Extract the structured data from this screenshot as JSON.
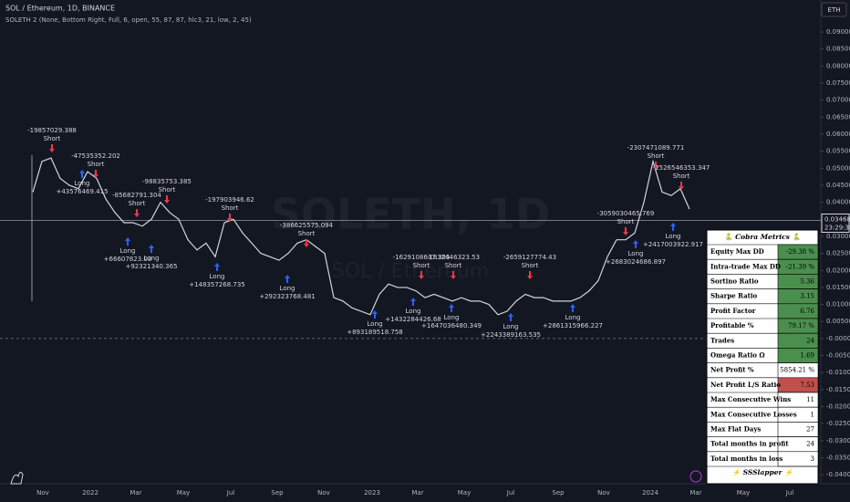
{
  "header": {
    "symbol": "SOL / Ethereum, 1D, BINANCE",
    "indicator": "SOLETH 2 (None, Bottom Right, Full, 6, open, 55, 87, 87, hlc3, 21, low, 2, 45)",
    "button": "ETH"
  },
  "watermark": {
    "main": "SOLETH, 1D",
    "sub": "SOL / Ethereum"
  },
  "price_axis": {
    "ylim": [
      -0.0405,
      0.0994
    ],
    "ticks": [
      {
        "value": 0.09,
        "label": "0.09000"
      },
      {
        "value": 0.085,
        "label": "0.08500"
      },
      {
        "value": 0.08,
        "label": "0.08000"
      },
      {
        "value": 0.075,
        "label": "0.07500"
      },
      {
        "value": 0.07,
        "label": "0.07000"
      },
      {
        "value": 0.065,
        "label": "0.06500"
      },
      {
        "value": 0.06,
        "label": "0.06000"
      },
      {
        "value": 0.055,
        "label": "0.05500"
      },
      {
        "value": 0.05,
        "label": "0.05000"
      },
      {
        "value": 0.045,
        "label": "0.04500"
      },
      {
        "value": 0.04,
        "label": "0.04000"
      },
      {
        "value": 0.035,
        "label": "0.03500"
      },
      {
        "value": 0.03,
        "label": "0.03000"
      },
      {
        "value": 0.025,
        "label": "0.02500"
      },
      {
        "value": 0.02,
        "label": "0.02000"
      },
      {
        "value": 0.015,
        "label": "0.01500"
      },
      {
        "value": 0.01,
        "label": "0.01000"
      },
      {
        "value": 0.005,
        "label": "0.00500"
      },
      {
        "value": 0,
        "label": "-0.00000"
      },
      {
        "value": -0.005,
        "label": "-0.00500"
      },
      {
        "value": -0.01,
        "label": "-0.01000"
      },
      {
        "value": -0.015,
        "label": "-0.01500"
      },
      {
        "value": -0.02,
        "label": "-0.02000"
      },
      {
        "value": -0.025,
        "label": "-0.02500"
      },
      {
        "value": -0.03,
        "label": "-0.03000"
      },
      {
        "value": -0.035,
        "label": "-0.03500"
      },
      {
        "value": -0.04,
        "label": "-0.04000"
      }
    ],
    "current": {
      "value": 0.03468,
      "label": "0.03468",
      "countdown": "23:29:35"
    }
  },
  "time_axis": [
    "Nov",
    "2022",
    "Mar",
    "May",
    "Jul",
    "Sep",
    "Nov",
    "2023",
    "Mar",
    "May",
    "Jul",
    "Sep",
    "Nov",
    "2024",
    "Mar",
    "May",
    "Jul"
  ],
  "price": {
    "values": [
      0.043,
      0.052,
      0.053,
      0.047,
      0.045,
      0.044,
      0.049,
      0.047,
      0.041,
      0.037,
      0.034,
      0.034,
      0.033,
      0.035,
      0.04,
      0.037,
      0.035,
      0.029,
      0.026,
      0.028,
      0.024,
      0.034,
      0.035,
      0.031,
      0.028,
      0.025,
      0.024,
      0.023,
      0.025,
      0.028,
      0.029,
      0.027,
      0.025,
      0.012,
      0.011,
      0.009,
      0.008,
      0.007,
      0.013,
      0.016,
      0.015,
      0.015,
      0.014,
      0.012,
      0.013,
      0.012,
      0.011,
      0.012,
      0.011,
      0.011,
      0.01,
      0.007,
      0.008,
      0.011,
      0.013,
      0.012,
      0.012,
      0.011,
      0.011,
      0.011,
      0.012,
      0.014,
      0.017,
      0.024,
      0.029,
      0.029,
      0.031,
      0.04,
      0.052,
      0.043,
      0.042,
      0.044,
      0.038
    ]
  },
  "trades": [
    {
      "label": "Short",
      "pnl": "-19857029.388"
    },
    {
      "label": "Short",
      "pnl": "-47535352.202"
    },
    {
      "label": "Short",
      "pnl": "-85682791.304"
    },
    {
      "label": "Short",
      "pnl": "-98835753.385"
    },
    {
      "label": "Short",
      "pnl": "-197903946.62"
    },
    {
      "label": "Short",
      "pnl": "-386625575.094"
    },
    {
      "label": "Short",
      "pnl": "-1629108637.305"
    },
    {
      "label": "Short",
      "pnl": "-1832446323.53"
    },
    {
      "label": "Short",
      "pnl": "-2659127774.43"
    },
    {
      "label": "Short",
      "pnl": "-3059030465.769"
    },
    {
      "label": "Short",
      "pnl": "-2307471089.771"
    },
    {
      "label": "Short",
      "pnl": "-2526546353.347"
    },
    {
      "label": "Long",
      "pnl": "+43576469.415"
    },
    {
      "label": "Long",
      "pnl": "+66607823.03"
    },
    {
      "label": "Long",
      "pnl": "+92321340.365"
    },
    {
      "label": "Long",
      "pnl": "+148357268.735"
    },
    {
      "label": "Long",
      "pnl": "+292323768.481"
    },
    {
      "label": "Long",
      "pnl": "+893189518.758"
    },
    {
      "label": "Long",
      "pnl": "+1432284426.68"
    },
    {
      "label": "Long",
      "pnl": "+1647036480.349"
    },
    {
      "label": "Long",
      "pnl": "+2243389163.535"
    },
    {
      "label": "Long",
      "pnl": "+2861315966.227"
    },
    {
      "label": "Long",
      "pnl": "+2683024686.897"
    },
    {
      "label": "Long",
      "pnl": "+2417003922.917"
    }
  ],
  "metrics": {
    "title": "🐍 Cobra Metrics 🐍",
    "footer": "⚡ SSSlapper ⚡",
    "rows": [
      {
        "label": "Equity Max DD",
        "value": "-29.38 %",
        "color": "#4b8f4e"
      },
      {
        "label": "Intra-trade Max DD",
        "value": "-21.39 %",
        "color": "#4b8f4e"
      },
      {
        "label": "Sortino Ratio",
        "value": "5.36",
        "color": "#4b8f4e"
      },
      {
        "label": "Sharpe Ratio",
        "value": "3.15",
        "color": "#4b8f4e"
      },
      {
        "label": "Profit Factor",
        "value": "6.76",
        "color": "#4b8f4e"
      },
      {
        "label": "Profitable %",
        "value": "79.17 %",
        "color": "#4b8f4e"
      },
      {
        "label": "Trades",
        "value": "24",
        "color": "#4b8f4e"
      },
      {
        "label": "Omega Ratio Ω",
        "value": "1.69",
        "color": "#4b8f4e"
      },
      {
        "label": "Net Profit %",
        "value": "5854.21 %",
        "color": "#ffffff"
      },
      {
        "label": "Net Profit L/S Ratio",
        "value": "7.53",
        "color": "#c0504d"
      },
      {
        "label": "Max Consecutive Wins",
        "value": "11",
        "color": "#ffffff"
      },
      {
        "label": "Max Consecutive Losses",
        "value": "1",
        "color": "#ffffff"
      },
      {
        "label": "Max Flat Days",
        "value": "27",
        "color": "#ffffff"
      },
      {
        "label": "Total months in profit",
        "value": "24",
        "color": "#ffffff"
      },
      {
        "label": "Total months in loss",
        "value": "3",
        "color": "#ffffff"
      }
    ]
  }
}
